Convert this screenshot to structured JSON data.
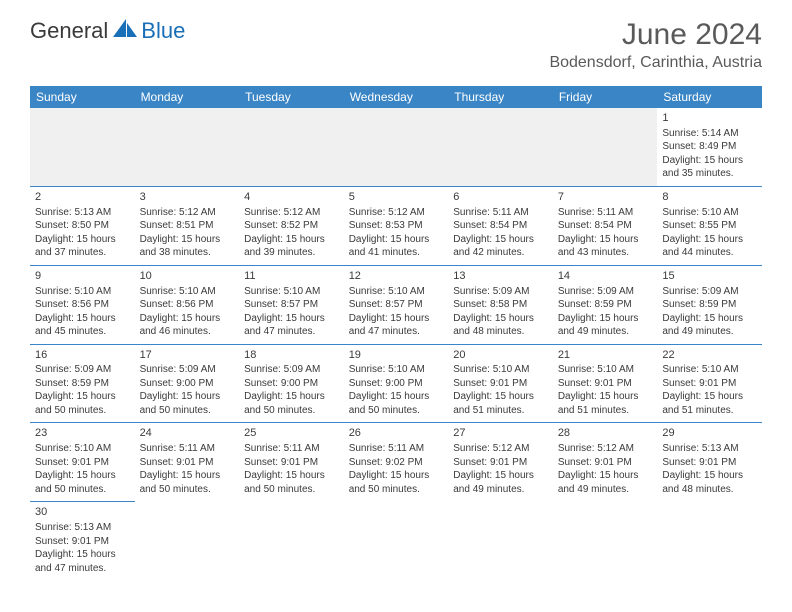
{
  "brand": {
    "text1": "General",
    "text2": "Blue",
    "color1": "#3a3a3a",
    "color2": "#1a70b8",
    "shape_color": "#1a70b8"
  },
  "title": "June 2024",
  "location": "Bodensdorf, Carinthia, Austria",
  "header_bg": "#3a85c6",
  "header_fg": "#ffffff",
  "rule_color": "#3a85c6",
  "day_headers": [
    "Sunday",
    "Monday",
    "Tuesday",
    "Wednesday",
    "Thursday",
    "Friday",
    "Saturday"
  ],
  "weeks": [
    [
      null,
      null,
      null,
      null,
      null,
      null,
      {
        "n": "1",
        "sr": "5:14 AM",
        "ss": "8:49 PM",
        "dl": "15 hours and 35 minutes."
      }
    ],
    [
      {
        "n": "2",
        "sr": "5:13 AM",
        "ss": "8:50 PM",
        "dl": "15 hours and 37 minutes."
      },
      {
        "n": "3",
        "sr": "5:12 AM",
        "ss": "8:51 PM",
        "dl": "15 hours and 38 minutes."
      },
      {
        "n": "4",
        "sr": "5:12 AM",
        "ss": "8:52 PM",
        "dl": "15 hours and 39 minutes."
      },
      {
        "n": "5",
        "sr": "5:12 AM",
        "ss": "8:53 PM",
        "dl": "15 hours and 41 minutes."
      },
      {
        "n": "6",
        "sr": "5:11 AM",
        "ss": "8:54 PM",
        "dl": "15 hours and 42 minutes."
      },
      {
        "n": "7",
        "sr": "5:11 AM",
        "ss": "8:54 PM",
        "dl": "15 hours and 43 minutes."
      },
      {
        "n": "8",
        "sr": "5:10 AM",
        "ss": "8:55 PM",
        "dl": "15 hours and 44 minutes."
      }
    ],
    [
      {
        "n": "9",
        "sr": "5:10 AM",
        "ss": "8:56 PM",
        "dl": "15 hours and 45 minutes."
      },
      {
        "n": "10",
        "sr": "5:10 AM",
        "ss": "8:56 PM",
        "dl": "15 hours and 46 minutes."
      },
      {
        "n": "11",
        "sr": "5:10 AM",
        "ss": "8:57 PM",
        "dl": "15 hours and 47 minutes."
      },
      {
        "n": "12",
        "sr": "5:10 AM",
        "ss": "8:57 PM",
        "dl": "15 hours and 47 minutes."
      },
      {
        "n": "13",
        "sr": "5:09 AM",
        "ss": "8:58 PM",
        "dl": "15 hours and 48 minutes."
      },
      {
        "n": "14",
        "sr": "5:09 AM",
        "ss": "8:59 PM",
        "dl": "15 hours and 49 minutes."
      },
      {
        "n": "15",
        "sr": "5:09 AM",
        "ss": "8:59 PM",
        "dl": "15 hours and 49 minutes."
      }
    ],
    [
      {
        "n": "16",
        "sr": "5:09 AM",
        "ss": "8:59 PM",
        "dl": "15 hours and 50 minutes."
      },
      {
        "n": "17",
        "sr": "5:09 AM",
        "ss": "9:00 PM",
        "dl": "15 hours and 50 minutes."
      },
      {
        "n": "18",
        "sr": "5:09 AM",
        "ss": "9:00 PM",
        "dl": "15 hours and 50 minutes."
      },
      {
        "n": "19",
        "sr": "5:10 AM",
        "ss": "9:00 PM",
        "dl": "15 hours and 50 minutes."
      },
      {
        "n": "20",
        "sr": "5:10 AM",
        "ss": "9:01 PM",
        "dl": "15 hours and 51 minutes."
      },
      {
        "n": "21",
        "sr": "5:10 AM",
        "ss": "9:01 PM",
        "dl": "15 hours and 51 minutes."
      },
      {
        "n": "22",
        "sr": "5:10 AM",
        "ss": "9:01 PM",
        "dl": "15 hours and 51 minutes."
      }
    ],
    [
      {
        "n": "23",
        "sr": "5:10 AM",
        "ss": "9:01 PM",
        "dl": "15 hours and 50 minutes."
      },
      {
        "n": "24",
        "sr": "5:11 AM",
        "ss": "9:01 PM",
        "dl": "15 hours and 50 minutes."
      },
      {
        "n": "25",
        "sr": "5:11 AM",
        "ss": "9:01 PM",
        "dl": "15 hours and 50 minutes."
      },
      {
        "n": "26",
        "sr": "5:11 AM",
        "ss": "9:02 PM",
        "dl": "15 hours and 50 minutes."
      },
      {
        "n": "27",
        "sr": "5:12 AM",
        "ss": "9:01 PM",
        "dl": "15 hours and 49 minutes."
      },
      {
        "n": "28",
        "sr": "5:12 AM",
        "ss": "9:01 PM",
        "dl": "15 hours and 49 minutes."
      },
      {
        "n": "29",
        "sr": "5:13 AM",
        "ss": "9:01 PM",
        "dl": "15 hours and 48 minutes."
      }
    ],
    [
      {
        "n": "30",
        "sr": "5:13 AM",
        "ss": "9:01 PM",
        "dl": "15 hours and 47 minutes."
      },
      null,
      null,
      null,
      null,
      null,
      null
    ]
  ],
  "labels": {
    "sunrise": "Sunrise:",
    "sunset": "Sunset:",
    "daylight": "Daylight:"
  }
}
